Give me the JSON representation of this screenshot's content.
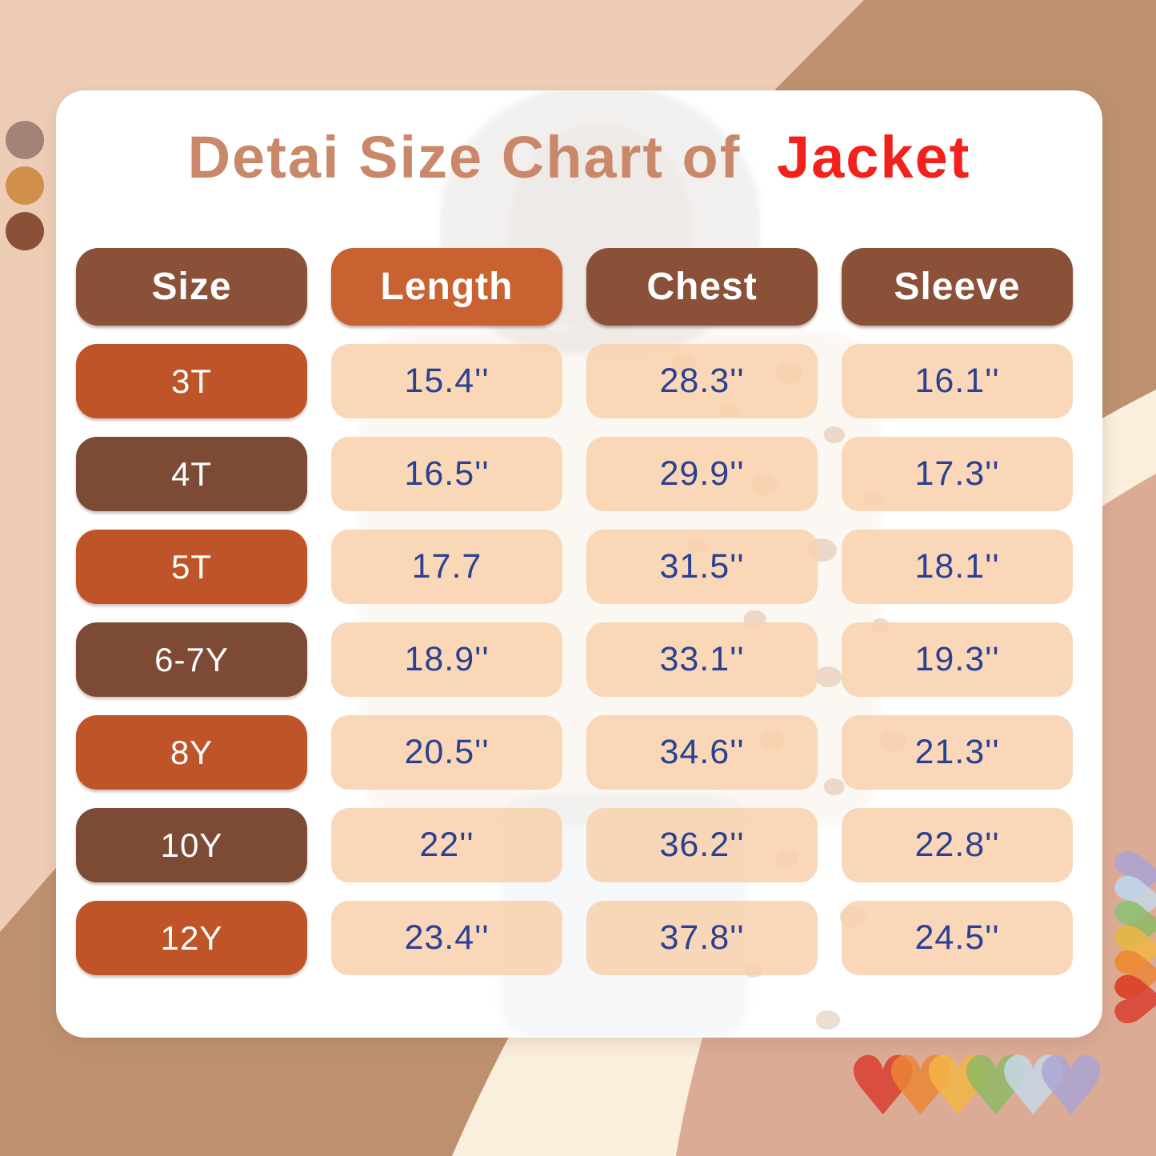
{
  "title": {
    "main": "Detai Size Chart of",
    "accent": "Jacket"
  },
  "table": {
    "headers": [
      "Size",
      "Length",
      "Chest",
      "Sleeve"
    ],
    "rows": [
      {
        "size": "3T",
        "length": "15.4''",
        "chest": "28.3''",
        "sleeve": "16.1''"
      },
      {
        "size": "4T",
        "length": "16.5''",
        "chest": "29.9''",
        "sleeve": "17.3''"
      },
      {
        "size": "5T",
        "length": "17.7",
        "chest": "31.5''",
        "sleeve": "18.1''"
      },
      {
        "size": "6-7Y",
        "length": "18.9''",
        "chest": "33.1''",
        "sleeve": "19.3''"
      },
      {
        "size": "8Y",
        "length": "20.5''",
        "chest": "34.6''",
        "sleeve": "21.3''"
      },
      {
        "size": "10Y",
        "length": "22''",
        "chest": "36.2''",
        "sleeve": "22.8''"
      },
      {
        "size": "12Y",
        "length": "23.4''",
        "chest": "37.8''",
        "sleeve": "24.5''"
      }
    ]
  },
  "chart_data": {
    "type": "table",
    "title": "Detai Size Chart of Jacket",
    "columns": [
      "Size",
      "Length",
      "Chest",
      "Sleeve"
    ],
    "rows": [
      [
        "3T",
        "15.4''",
        "28.3''",
        "16.1''"
      ],
      [
        "4T",
        "16.5''",
        "29.9''",
        "17.3''"
      ],
      [
        "5T",
        "17.7",
        "31.5''",
        "18.1''"
      ],
      [
        "6-7Y",
        "18.9''",
        "33.1''",
        "19.3''"
      ],
      [
        "8Y",
        "20.5''",
        "34.6''",
        "21.3''"
      ],
      [
        "10Y",
        "22''",
        "36.2''",
        "22.8''"
      ],
      [
        "12Y",
        "23.4''",
        "37.8''",
        "24.5''"
      ]
    ]
  },
  "colors": {
    "background_peach": "#eecdb7",
    "background_tan": "#bd9170",
    "background_cream": "#faeedd",
    "background_salmon": "#dcab96",
    "card": "#ffffff",
    "title_main": "#c9886a",
    "title_accent": "#f2211c",
    "header_brown": "#8a5138",
    "header_orange": "#c96231",
    "row_orange": "#bf5429",
    "row_brown": "#7d4a36",
    "value_cell": "#f8d2ae",
    "value_text": "#2a4191"
  },
  "decorations": {
    "palette_dots": [
      "#a18378",
      "#d18f4c",
      "#8a5138"
    ],
    "hearts_bottom": [
      "#d93a2b",
      "#ee8534",
      "#f4b644",
      "#8cba63",
      "#c6daeb",
      "#aaa4d6"
    ],
    "hearts_right": [
      "#aaa4d6",
      "#c6daeb",
      "#8cba63",
      "#f4b644",
      "#ee8534",
      "#d93a2b"
    ]
  }
}
